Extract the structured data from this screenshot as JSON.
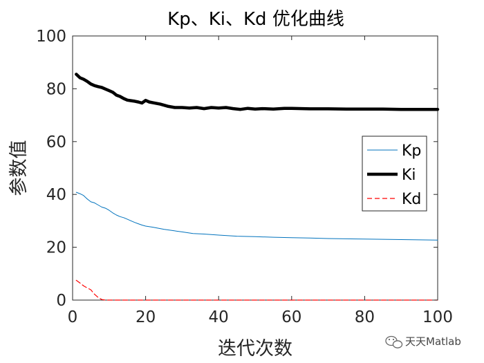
{
  "chart_data": {
    "type": "line",
    "title": "Kp、Ki、Kd 优化曲线",
    "xlabel": "迭代次数",
    "ylabel": "参数值",
    "xlim": [
      0,
      100
    ],
    "ylim": [
      0,
      100
    ],
    "xticks": [
      "0",
      "20",
      "40",
      "60",
      "80",
      "100"
    ],
    "yticks": [
      "0",
      "20",
      "40",
      "60",
      "80",
      "100"
    ],
    "grid": false,
    "legend_position": "right",
    "series": [
      {
        "name": "Kp",
        "color": "#0072BD",
        "style": "solid",
        "x": [
          1,
          2,
          3,
          4,
          5,
          6,
          7,
          8,
          9,
          10,
          11,
          12,
          13,
          14,
          15,
          16,
          17,
          18,
          19,
          20,
          22,
          25,
          28,
          30,
          33,
          36,
          40,
          45,
          50,
          55,
          60,
          65,
          70,
          75,
          80,
          85,
          90,
          95,
          100
        ],
        "y": [
          40.8,
          40.3,
          39.6,
          38.3,
          37.2,
          36.8,
          36.0,
          35.2,
          34.8,
          34.0,
          33.0,
          32.2,
          31.6,
          31.2,
          30.6,
          30.0,
          29.4,
          28.9,
          28.4,
          28.0,
          27.6,
          26.8,
          26.2,
          25.8,
          25.2,
          25.0,
          24.6,
          24.2,
          24.0,
          23.8,
          23.6,
          23.5,
          23.3,
          23.2,
          23.1,
          23.0,
          22.9,
          22.8,
          22.7
        ]
      },
      {
        "name": "Ki",
        "color": "#000000",
        "style": "solid",
        "x": [
          1,
          2,
          3,
          4,
          5,
          6,
          7,
          8,
          9,
          10,
          11,
          12,
          13,
          14,
          15,
          16,
          17,
          18,
          19,
          20,
          21,
          22,
          24,
          26,
          28,
          30,
          32,
          34,
          36,
          38,
          40,
          42,
          44,
          46,
          48,
          50,
          52,
          55,
          58,
          60,
          65,
          70,
          75,
          80,
          85,
          90,
          95,
          100
        ],
        "y": [
          85.5,
          84.2,
          83.6,
          82.8,
          81.8,
          81.2,
          80.8,
          80.5,
          79.9,
          79.3,
          78.7,
          77.6,
          77.1,
          76.3,
          75.7,
          75.5,
          75.3,
          75.0,
          74.6,
          75.6,
          75.0,
          74.7,
          74.2,
          73.4,
          72.9,
          72.9,
          72.7,
          72.9,
          72.5,
          72.9,
          72.7,
          72.9,
          72.5,
          72.2,
          72.6,
          72.3,
          72.5,
          72.3,
          72.6,
          72.6,
          72.4,
          72.4,
          72.3,
          72.3,
          72.3,
          72.2,
          72.2,
          72.2
        ]
      },
      {
        "name": "Kd",
        "color": "#FF0000",
        "style": "dashed",
        "x": [
          1,
          2,
          3,
          4,
          5,
          6,
          7,
          8,
          9,
          10,
          20,
          30,
          40,
          50,
          60,
          70,
          80,
          90,
          100
        ],
        "y": [
          7.5,
          6.5,
          5.4,
          4.6,
          3.9,
          2.2,
          1.0,
          0.2,
          0.0,
          0.0,
          0.0,
          0.0,
          0.0,
          0.0,
          0.0,
          0.0,
          0.0,
          0.0,
          0.0
        ]
      }
    ]
  },
  "watermark": {
    "text": "天天Matlab",
    "icon": "wechat-icon"
  }
}
